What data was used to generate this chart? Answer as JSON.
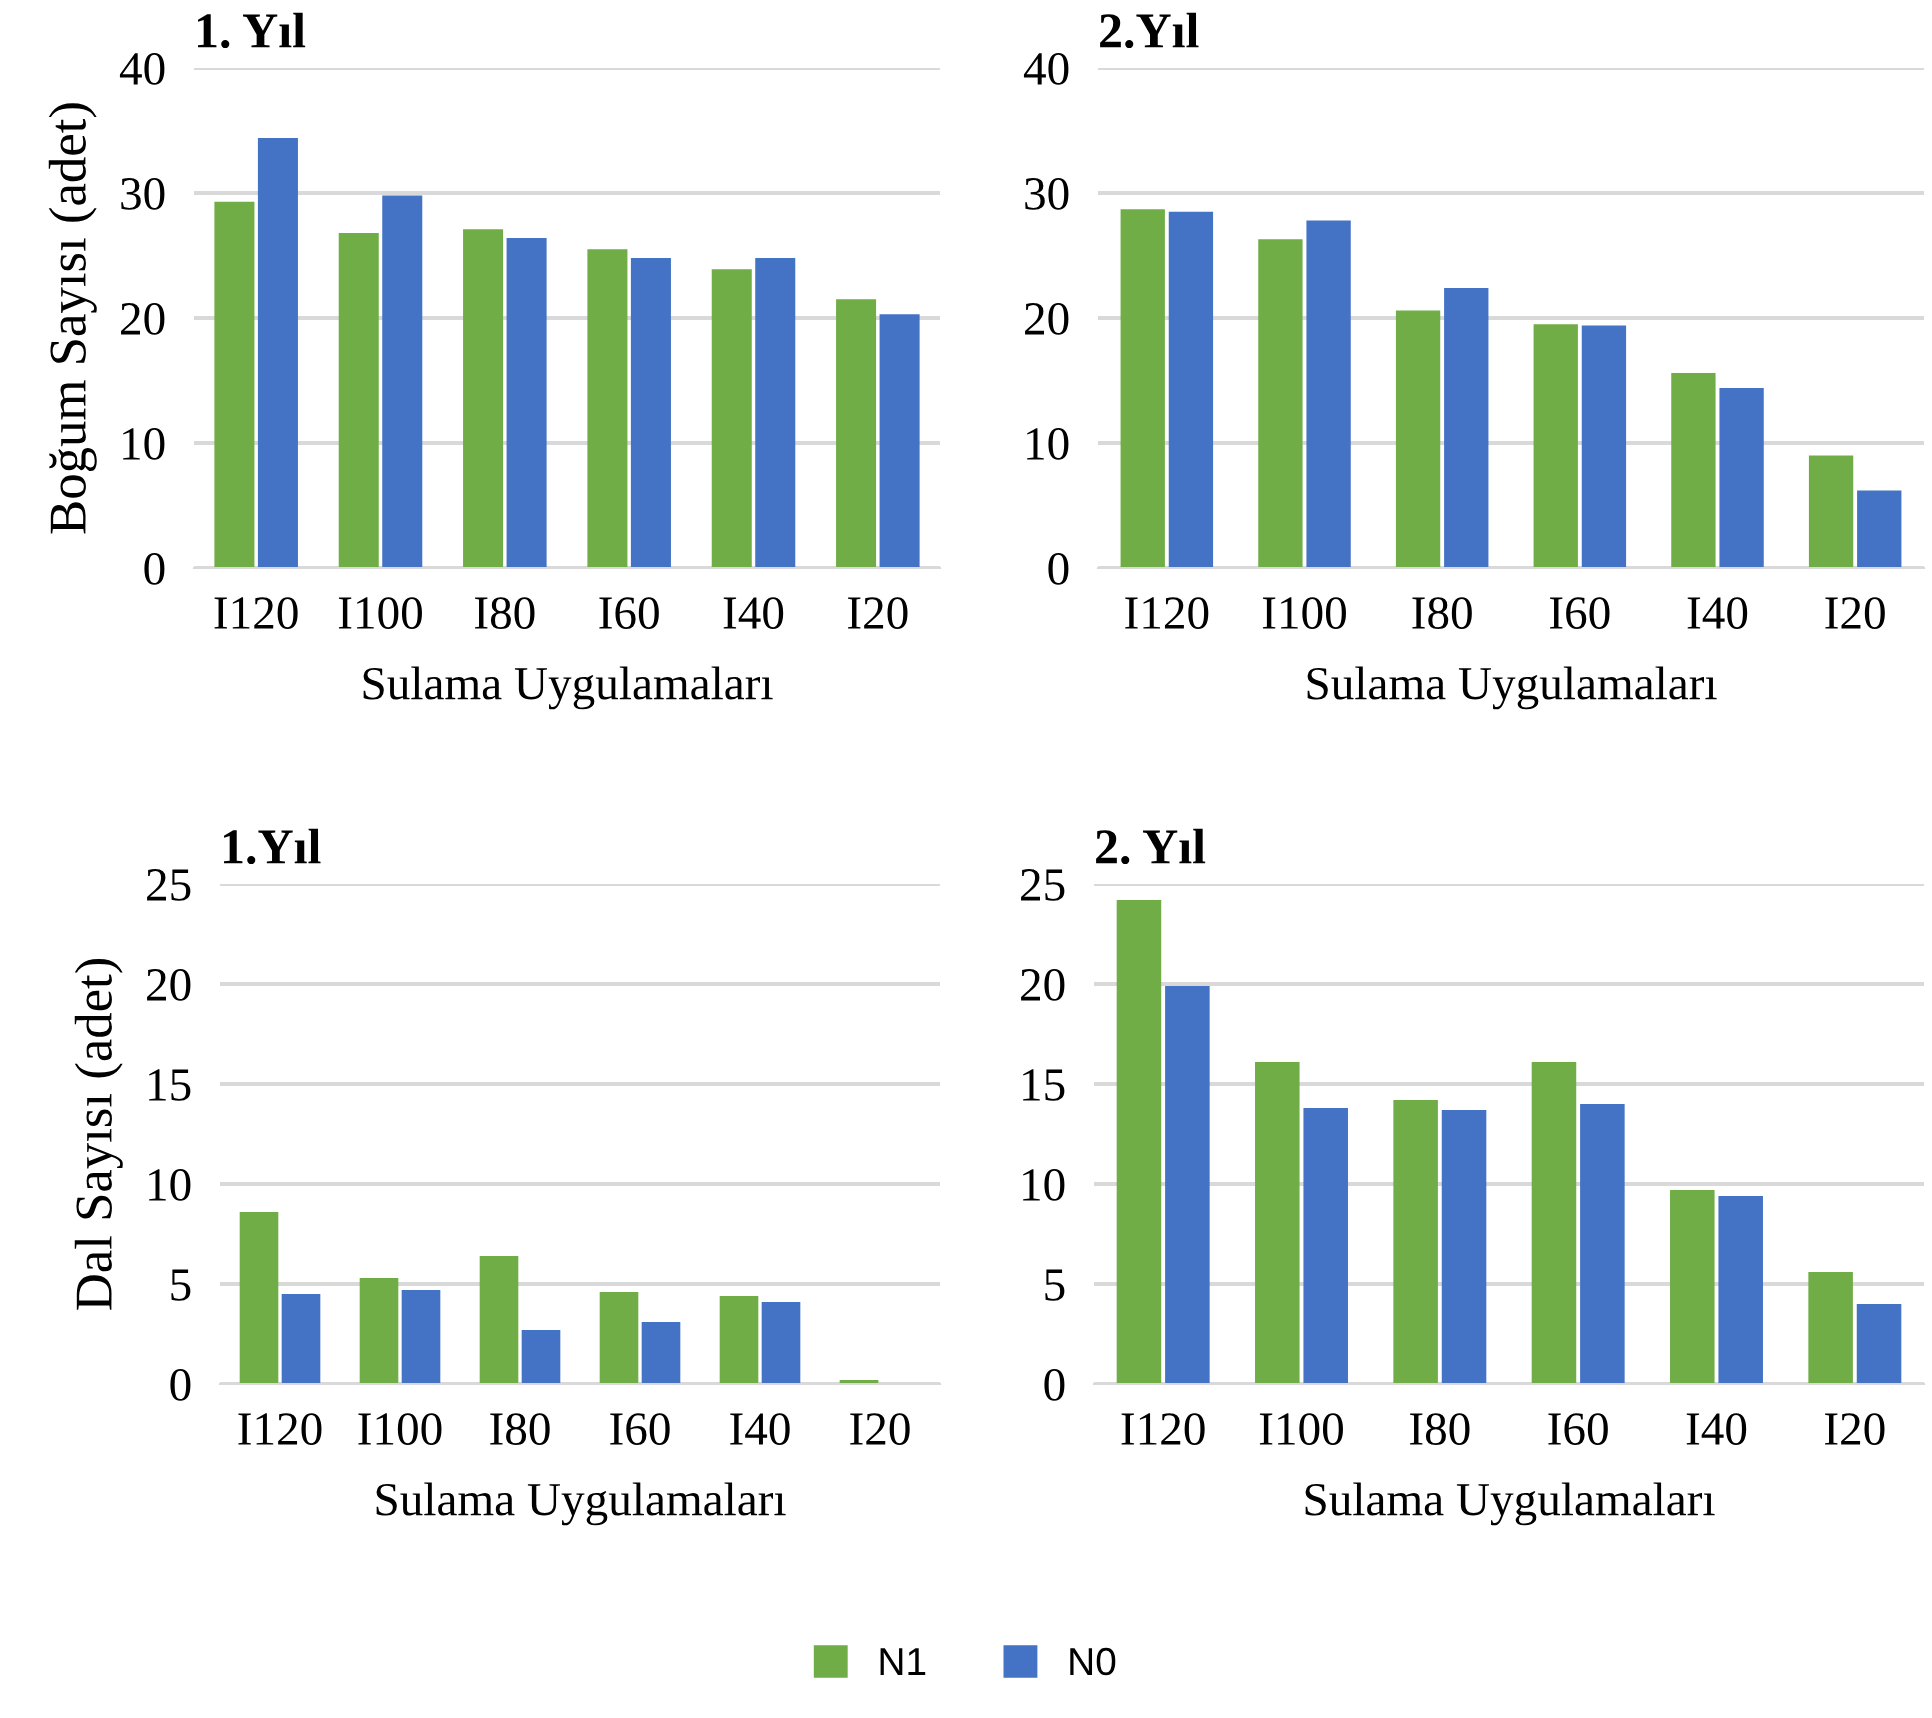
{
  "chart_data": [
    {
      "type": "bar",
      "title": "1. Yıl",
      "xlabel": "Sulama Uygulamaları",
      "ylabel": "Boğum Sayısı (adet)",
      "categories": [
        "I120",
        "I100",
        "I80",
        "I60",
        "I40",
        "I20"
      ],
      "ylim": [
        0,
        40
      ],
      "yticks": [
        0,
        10,
        20,
        30,
        40
      ],
      "grid": "y",
      "legend": "bottom",
      "series": [
        {
          "name": "N1",
          "color": "#70ad47",
          "values": [
            29.3,
            26.8,
            27.1,
            25.5,
            23.9,
            21.5
          ]
        },
        {
          "name": "N0",
          "color": "#4472c4",
          "values": [
            34.4,
            29.8,
            26.4,
            24.8,
            24.8,
            20.3
          ]
        }
      ]
    },
    {
      "type": "bar",
      "title": "2.Yıl",
      "xlabel": "Sulama Uygulamaları",
      "categories": [
        "I120",
        "I100",
        "I80",
        "I60",
        "I40",
        "I20"
      ],
      "ylim": [
        0,
        40
      ],
      "yticks": [
        0,
        10,
        20,
        30,
        40
      ],
      "grid": "y",
      "legend": "bottom",
      "series": [
        {
          "name": "N1",
          "color": "#70ad47",
          "values": [
            28.7,
            26.3,
            20.6,
            19.5,
            15.6,
            9.0
          ]
        },
        {
          "name": "N0",
          "color": "#4472c4",
          "values": [
            28.5,
            27.8,
            22.4,
            19.4,
            14.4,
            6.2
          ]
        }
      ]
    },
    {
      "type": "bar",
      "title": "1.Yıl",
      "xlabel": "Sulama Uygulamaları",
      "ylabel": "Dal Sayısı (adet)",
      "categories": [
        "I120",
        "I100",
        "I80",
        "I60",
        "I40",
        "I20"
      ],
      "ylim": [
        0,
        25
      ],
      "yticks": [
        0,
        5,
        10,
        15,
        20,
        25
      ],
      "grid": "y",
      "legend": "bottom",
      "series": [
        {
          "name": "N1",
          "color": "#70ad47",
          "values": [
            8.6,
            5.3,
            6.4,
            4.6,
            4.4,
            0.2
          ]
        },
        {
          "name": "N0",
          "color": "#4472c4",
          "values": [
            4.5,
            4.7,
            2.7,
            3.1,
            4.1,
            0
          ]
        }
      ]
    },
    {
      "type": "bar",
      "title": "2. Yıl",
      "xlabel": "Sulama Uygulamaları",
      "categories": [
        "I120",
        "I100",
        "I80",
        "I60",
        "I40",
        "I20"
      ],
      "ylim": [
        0,
        25
      ],
      "yticks": [
        0,
        5,
        10,
        15,
        20,
        25
      ],
      "grid": "y",
      "legend": "bottom",
      "series": [
        {
          "name": "N1",
          "color": "#70ad47",
          "values": [
            24.2,
            16.1,
            14.2,
            16.1,
            9.7,
            5.6
          ]
        },
        {
          "name": "N0",
          "color": "#4472c4",
          "values": [
            19.9,
            13.8,
            13.7,
            14.0,
            9.4,
            4.0
          ]
        }
      ]
    }
  ]
}
